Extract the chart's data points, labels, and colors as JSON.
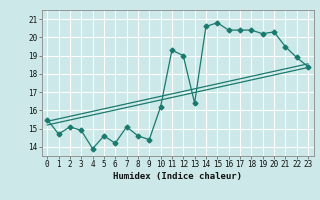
{
  "xlabel": "Humidex (Indice chaleur)",
  "ylabel": "",
  "bg_color": "#cce8e8",
  "grid_color": "#ffffff",
  "line_color": "#1a7a6e",
  "xlim": [
    -0.5,
    23.5
  ],
  "ylim": [
    13.5,
    21.5
  ],
  "xticks": [
    0,
    1,
    2,
    3,
    4,
    5,
    6,
    7,
    8,
    9,
    10,
    11,
    12,
    13,
    14,
    15,
    16,
    17,
    18,
    19,
    20,
    21,
    22,
    23
  ],
  "yticks": [
    14,
    15,
    16,
    17,
    18,
    19,
    20,
    21
  ],
  "main_x": [
    0,
    1,
    2,
    3,
    4,
    5,
    6,
    7,
    8,
    9,
    10,
    11,
    12,
    13,
    14,
    15,
    16,
    17,
    18,
    19,
    20,
    21,
    22,
    23
  ],
  "main_y": [
    15.5,
    14.7,
    15.1,
    14.9,
    13.9,
    14.6,
    14.2,
    15.1,
    14.6,
    14.4,
    16.2,
    19.3,
    19.0,
    16.4,
    20.6,
    20.8,
    20.4,
    20.4,
    20.4,
    20.2,
    20.3,
    19.5,
    18.9,
    18.4
  ],
  "line1_x": [
    0,
    23
  ],
  "line1_y": [
    15.4,
    18.55
  ],
  "line2_x": [
    0,
    23
  ],
  "line2_y": [
    15.2,
    18.35
  ],
  "marker_size": 2.5,
  "linewidth": 0.9
}
